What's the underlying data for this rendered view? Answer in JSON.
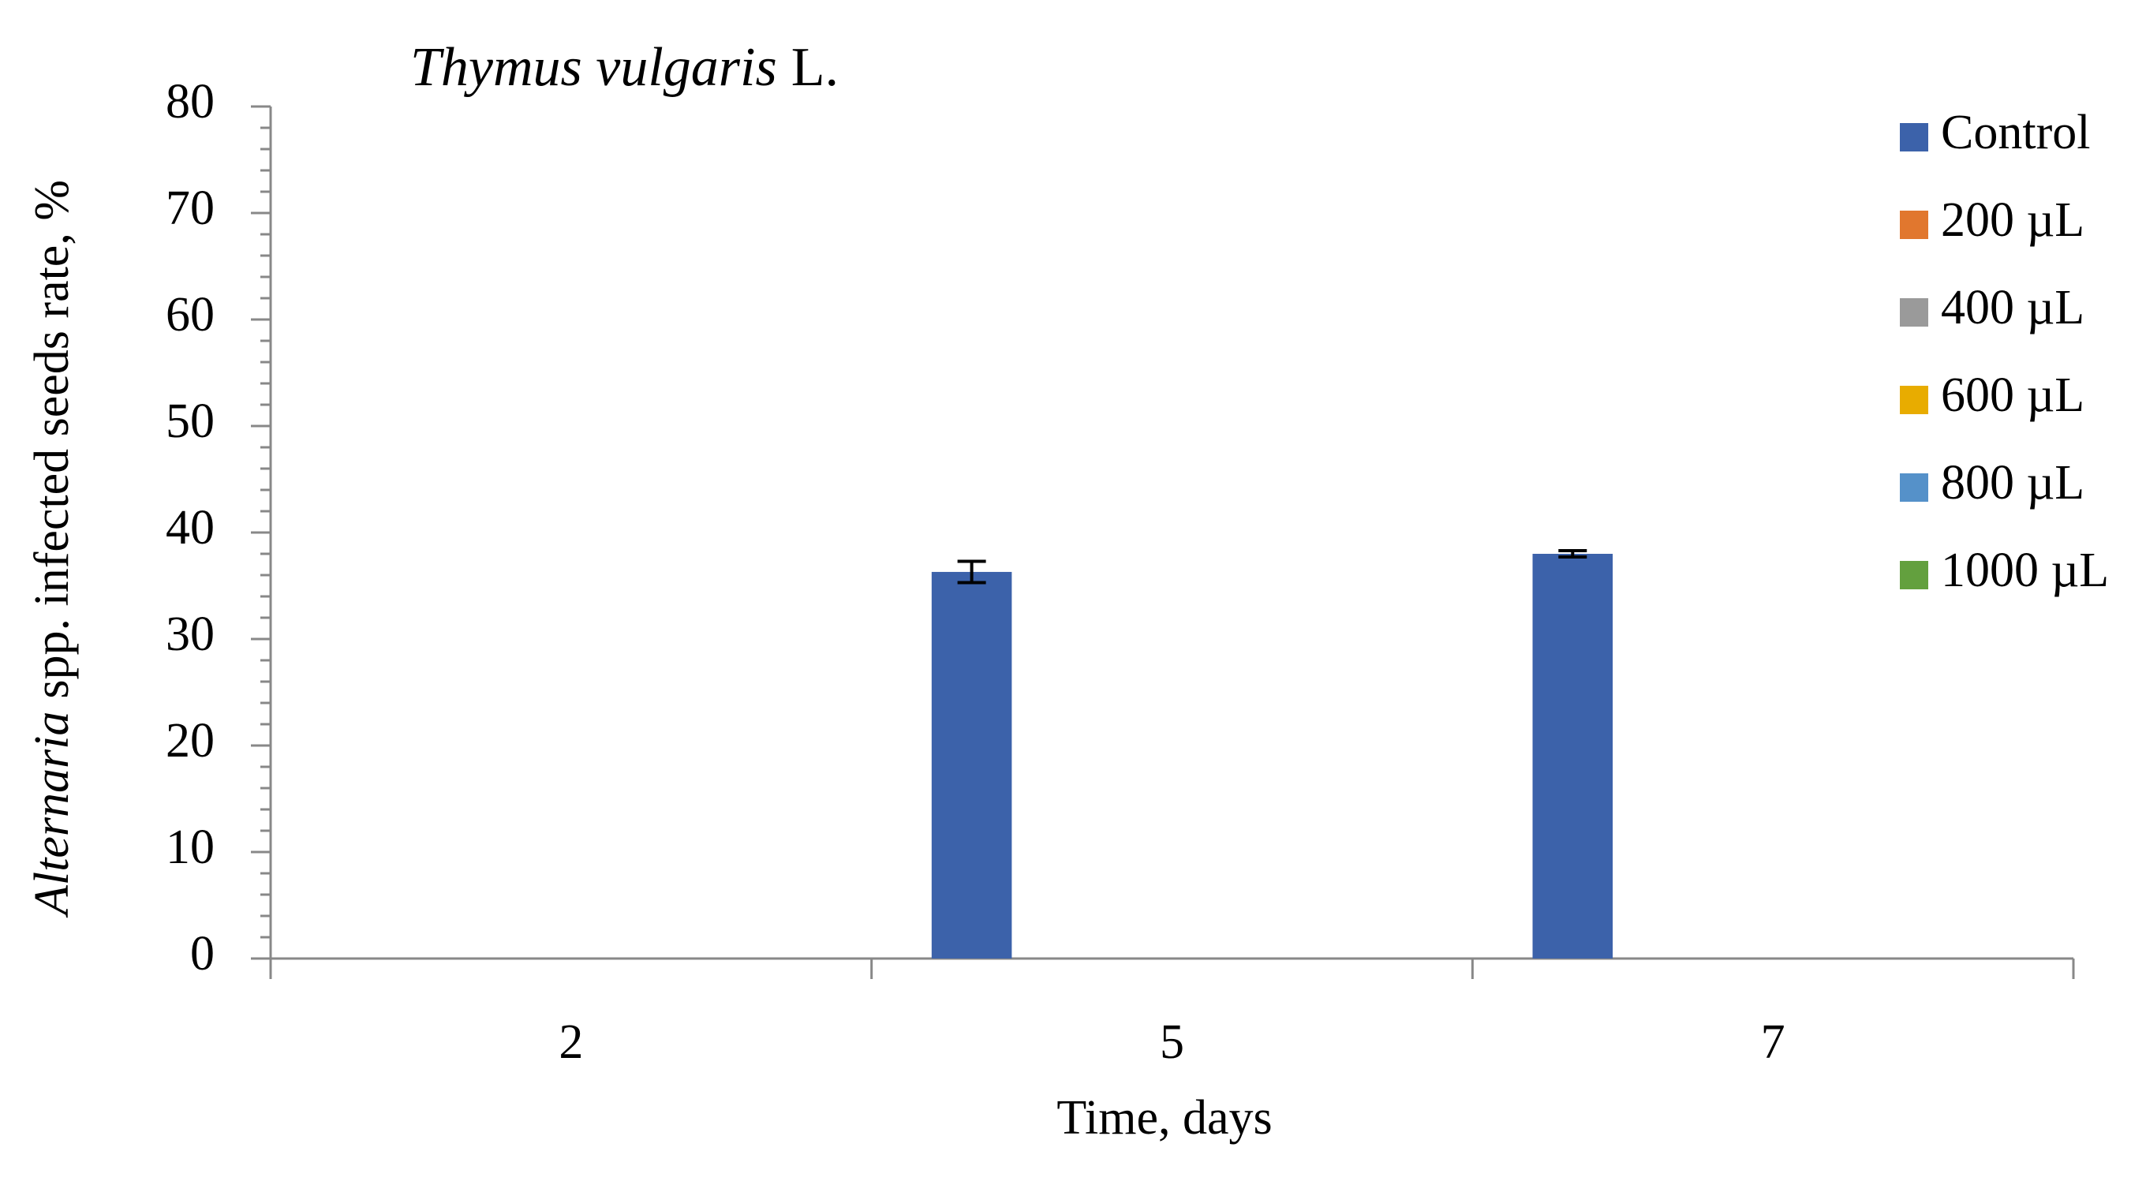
{
  "chart_data": {
    "type": "bar",
    "title": [
      "Thymus vulgaris",
      "L."
    ],
    "x_label": "Time, days",
    "y_label": [
      "Alternaria",
      "spp. infected seeds rate, %"
    ],
    "categories": [
      "2",
      "5",
      "7"
    ],
    "series": [
      {
        "name": "Control",
        "color": "#3c62aa",
        "values": [
          0,
          36.3,
          38
        ],
        "errors": [
          0,
          1,
          0.3
        ]
      },
      {
        "name": "200 µL",
        "color": "#e1772e",
        "values": [
          0,
          0,
          0
        ]
      },
      {
        "name": "400 µL",
        "color": "#9a9a9a",
        "values": [
          0,
          0,
          0
        ]
      },
      {
        "name": "600 µL",
        "color": "#e8ac00",
        "values": [
          0,
          0,
          0
        ]
      },
      {
        "name": "800 µL",
        "color": "#5591c9",
        "values": [
          0,
          0,
          0
        ]
      },
      {
        "name": "1000 µL",
        "color": "#63a03e",
        "values": [
          0,
          0,
          0
        ]
      }
    ],
    "ylim": [
      0,
      80
    ],
    "yticks": [
      0,
      10,
      20,
      30,
      40,
      50,
      60,
      70,
      80
    ],
    "grid": false,
    "legend": "right"
  }
}
